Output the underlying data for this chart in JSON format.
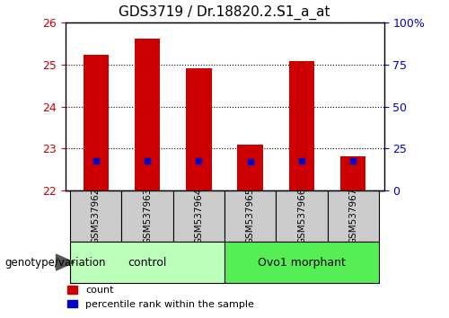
{
  "title": "GDS3719 / Dr.18820.2.S1_a_at",
  "samples": [
    "GSM537962",
    "GSM537963",
    "GSM537964",
    "GSM537965",
    "GSM537966",
    "GSM537967"
  ],
  "bar_tops": [
    25.22,
    25.62,
    24.9,
    23.1,
    25.08,
    22.82
  ],
  "bar_bottom": 22.0,
  "percentile_values": [
    22.72,
    22.72,
    22.72,
    22.7,
    22.72,
    22.72
  ],
  "bar_color": "#CC0000",
  "percentile_color": "#0000CC",
  "ylim": [
    22.0,
    26.0
  ],
  "yticks_left": [
    22,
    23,
    24,
    25,
    26
  ],
  "yticks_right_labels": [
    "0",
    "25",
    "50",
    "75",
    "100%"
  ],
  "groups": [
    {
      "label": "control",
      "indices": [
        0,
        1,
        2
      ]
    },
    {
      "label": "Ovo1 morphant",
      "indices": [
        3,
        4,
        5
      ]
    }
  ],
  "group_label": "genotype/variation",
  "legend_count_label": "count",
  "legend_percentile_label": "percentile rank within the sample",
  "bar_width": 0.5,
  "tick_label_area_color": "#cccccc",
  "group_area_colors": [
    "#bbffbb",
    "#55ee55"
  ]
}
